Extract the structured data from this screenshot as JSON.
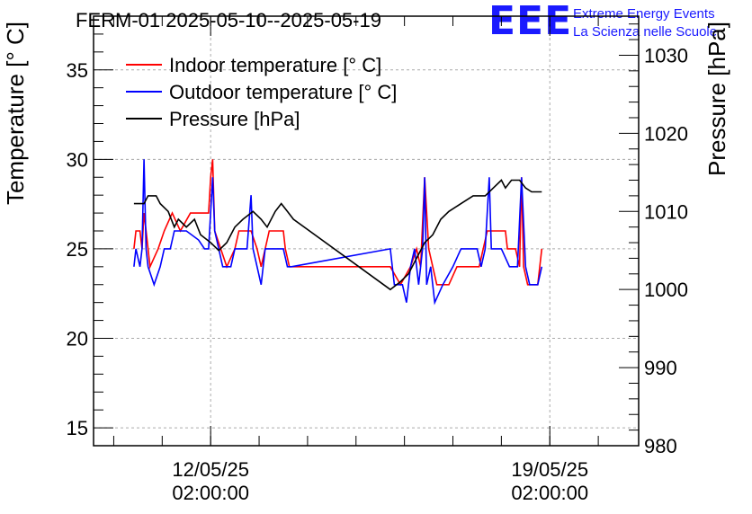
{
  "title": "FERM-01 2025-05-10--2025-05-19",
  "logo": {
    "mark": "EEE",
    "line1": "Extreme Energy Events",
    "line2": "La Scienza nelle Scuole"
  },
  "colors": {
    "indoor": "#ff0000",
    "outdoor": "#0000ff",
    "pressure": "#000000",
    "grid": "#aaaaaa",
    "logo": "#1a1aff"
  },
  "chart_data": {
    "type": "line",
    "title": "FERM-01 2025-05-10--2025-05-19",
    "grid": true,
    "legend_position": "top-left",
    "x_axis": {
      "type": "time",
      "range": [
        "2025-05-09 16:00",
        "2025-05-20 22:00"
      ],
      "ticks": [
        {
          "date": "12/05/25",
          "time": "02:00:00",
          "at": "2025-05-12 02:00"
        },
        {
          "date": "19/05/25",
          "time": "02:00:00",
          "at": "2025-05-19 02:00"
        }
      ]
    },
    "y_left": {
      "label": "Temperature [° C]",
      "range": [
        14,
        38
      ],
      "ticks": [
        15,
        20,
        25,
        30,
        35
      ]
    },
    "y_right": {
      "label": "Pressure [hPa]",
      "range": [
        980,
        1035
      ],
      "ticks": [
        980,
        990,
        1000,
        1010,
        1020,
        1030
      ]
    },
    "series": [
      {
        "name": "Indoor temperature [° C]",
        "axis": "left",
        "color": "#ff0000",
        "points": [
          [
            "2025-05-10 12:00",
            25
          ],
          [
            "2025-05-10 13:00",
            26
          ],
          [
            "2025-05-10 15:00",
            26
          ],
          [
            "2025-05-10 16:00",
            25
          ],
          [
            "2025-05-10 17:00",
            27
          ],
          [
            "2025-05-10 18:00",
            26
          ],
          [
            "2025-05-10 19:00",
            25
          ],
          [
            "2025-05-10 20:00",
            24
          ],
          [
            "2025-05-11 00:00",
            25
          ],
          [
            "2025-05-11 03:00",
            26
          ],
          [
            "2025-05-11 07:00",
            27
          ],
          [
            "2025-05-11 11:00",
            26
          ],
          [
            "2025-05-11 16:00",
            27
          ],
          [
            "2025-05-12 01:00",
            27
          ],
          [
            "2025-05-12 02:00",
            29
          ],
          [
            "2025-05-12 03:00",
            30
          ],
          [
            "2025-05-12 04:00",
            26
          ],
          [
            "2025-05-12 07:00",
            25
          ],
          [
            "2025-05-12 10:00",
            24
          ],
          [
            "2025-05-12 14:00",
            25
          ],
          [
            "2025-05-12 16:00",
            26
          ],
          [
            "2025-05-12 22:00",
            26
          ],
          [
            "2025-05-13 01:00",
            25
          ],
          [
            "2025-05-13 03:00",
            24
          ],
          [
            "2025-05-13 05:00",
            25
          ],
          [
            "2025-05-13 07:00",
            26
          ],
          [
            "2025-05-13 14:00",
            26
          ],
          [
            "2025-05-13 15:00",
            25
          ],
          [
            "2025-05-13 17:00",
            24
          ],
          [
            "2025-05-13 18:00",
            24
          ],
          [
            "2025-05-15 19:00",
            24
          ],
          [
            "2025-05-16 00:00",
            23
          ],
          [
            "2025-05-16 05:00",
            24
          ],
          [
            "2025-05-16 08:00",
            25
          ],
          [
            "2025-05-16 10:00",
            24
          ],
          [
            "2025-05-16 12:00",
            29
          ],
          [
            "2025-05-16 14:00",
            25
          ],
          [
            "2025-05-16 16:00",
            24
          ],
          [
            "2025-05-16 18:00",
            23
          ],
          [
            "2025-05-17 00:00",
            23
          ],
          [
            "2025-05-17 04:00",
            24
          ],
          [
            "2025-05-17 15:00",
            24
          ],
          [
            "2025-05-17 17:00",
            25
          ],
          [
            "2025-05-17 19:00",
            26
          ],
          [
            "2025-05-18 04:00",
            26
          ],
          [
            "2025-05-18 05:00",
            25
          ],
          [
            "2025-05-18 09:00",
            25
          ],
          [
            "2025-05-18 11:00",
            24
          ],
          [
            "2025-05-18 12:00",
            29
          ],
          [
            "2025-05-18 13:00",
            24
          ],
          [
            "2025-05-18 15:00",
            23
          ],
          [
            "2025-05-18 20:00",
            23
          ],
          [
            "2025-05-18 22:00",
            25
          ]
        ]
      },
      {
        "name": "Outdoor temperature [° C]",
        "axis": "left",
        "color": "#0000ff",
        "points": [
          [
            "2025-05-10 12:00",
            24
          ],
          [
            "2025-05-10 13:00",
            25
          ],
          [
            "2025-05-10 15:00",
            24
          ],
          [
            "2025-05-10 16:00",
            25
          ],
          [
            "2025-05-10 17:00",
            30
          ],
          [
            "2025-05-10 18:00",
            25
          ],
          [
            "2025-05-10 19:00",
            24
          ],
          [
            "2025-05-10 22:00",
            23
          ],
          [
            "2025-05-11 01:00",
            24
          ],
          [
            "2025-05-11 03:00",
            25
          ],
          [
            "2025-05-11 06:00",
            25
          ],
          [
            "2025-05-11 08:00",
            26
          ],
          [
            "2025-05-11 14:00",
            26
          ],
          [
            "2025-05-11 20:00",
            25.5
          ],
          [
            "2025-05-11 23:00",
            25
          ],
          [
            "2025-05-12 01:00",
            25
          ],
          [
            "2025-05-12 03:00",
            29
          ],
          [
            "2025-05-12 04:00",
            26
          ],
          [
            "2025-05-12 06:00",
            25
          ],
          [
            "2025-05-12 08:00",
            24
          ],
          [
            "2025-05-12 12:00",
            24
          ],
          [
            "2025-05-12 14:00",
            25
          ],
          [
            "2025-05-12 20:00",
            25
          ],
          [
            "2025-05-12 22:00",
            28
          ],
          [
            "2025-05-12 23:00",
            25
          ],
          [
            "2025-05-13 01:00",
            24
          ],
          [
            "2025-05-13 03:00",
            23
          ],
          [
            "2025-05-13 05:00",
            25
          ],
          [
            "2025-05-13 14:00",
            25
          ],
          [
            "2025-05-13 16:00",
            24
          ],
          [
            "2025-05-13 18:00",
            24
          ],
          [
            "2025-05-15 19:00",
            25
          ],
          [
            "2025-05-15 21:00",
            23
          ],
          [
            "2025-05-16 01:00",
            23
          ],
          [
            "2025-05-16 03:00",
            22
          ],
          [
            "2025-05-16 05:00",
            24
          ],
          [
            "2025-05-16 07:00",
            25
          ],
          [
            "2025-05-16 09:00",
            23
          ],
          [
            "2025-05-16 11:00",
            25
          ],
          [
            "2025-05-16 12:00",
            29
          ],
          [
            "2025-05-16 13:00",
            23
          ],
          [
            "2025-05-16 15:00",
            24
          ],
          [
            "2025-05-16 17:00",
            22
          ],
          [
            "2025-05-16 21:00",
            23
          ],
          [
            "2025-05-17 02:00",
            24
          ],
          [
            "2025-05-17 06:00",
            25
          ],
          [
            "2025-05-17 14:00",
            25
          ],
          [
            "2025-05-17 16:00",
            24
          ],
          [
            "2025-05-17 18:00",
            25
          ],
          [
            "2025-05-17 20:00",
            29
          ],
          [
            "2025-05-17 21:00",
            25
          ],
          [
            "2025-05-18 02:00",
            25
          ],
          [
            "2025-05-18 06:00",
            24
          ],
          [
            "2025-05-18 10:00",
            24
          ],
          [
            "2025-05-18 12:00",
            29
          ],
          [
            "2025-05-18 14:00",
            24
          ],
          [
            "2025-05-18 16:00",
            23
          ],
          [
            "2025-05-18 20:00",
            23
          ],
          [
            "2025-05-18 22:00",
            24
          ]
        ]
      },
      {
        "name": "Pressure [hPa]",
        "axis": "right",
        "color": "#000000",
        "points": [
          [
            "2025-05-10 12:00",
            1011
          ],
          [
            "2025-05-10 17:00",
            1011
          ],
          [
            "2025-05-10 19:00",
            1012
          ],
          [
            "2025-05-10 23:00",
            1012
          ],
          [
            "2025-05-11 01:00",
            1011
          ],
          [
            "2025-05-11 05:00",
            1010
          ],
          [
            "2025-05-11 08:00",
            1008
          ],
          [
            "2025-05-11 10:00",
            1009
          ],
          [
            "2025-05-11 14:00",
            1008
          ],
          [
            "2025-05-11 18:00",
            1009
          ],
          [
            "2025-05-11 21:00",
            1007
          ],
          [
            "2025-05-12 02:00",
            1006
          ],
          [
            "2025-05-12 06:00",
            1005
          ],
          [
            "2025-05-12 10:00",
            1006
          ],
          [
            "2025-05-12 14:00",
            1008
          ],
          [
            "2025-05-12 18:00",
            1009
          ],
          [
            "2025-05-12 23:00",
            1010
          ],
          [
            "2025-05-13 03:00",
            1009
          ],
          [
            "2025-05-13 06:00",
            1008
          ],
          [
            "2025-05-13 10:00",
            1010
          ],
          [
            "2025-05-13 13:00",
            1011
          ],
          [
            "2025-05-13 16:00",
            1010
          ],
          [
            "2025-05-13 19:00",
            1009
          ],
          [
            "2025-05-15 19:00",
            1000
          ],
          [
            "2025-05-16 00:00",
            1001
          ],
          [
            "2025-05-16 04:00",
            1002
          ],
          [
            "2025-05-16 08:00",
            1004
          ],
          [
            "2025-05-16 12:00",
            1006
          ],
          [
            "2025-05-16 16:00",
            1007
          ],
          [
            "2025-05-16 20:00",
            1009
          ],
          [
            "2025-05-17 00:00",
            1010
          ],
          [
            "2025-05-17 06:00",
            1011
          ],
          [
            "2025-05-17 12:00",
            1012
          ],
          [
            "2025-05-17 18:00",
            1012
          ],
          [
            "2025-05-17 22:00",
            1013
          ],
          [
            "2025-05-18 02:00",
            1014
          ],
          [
            "2025-05-18 04:00",
            1013
          ],
          [
            "2025-05-18 07:00",
            1014
          ],
          [
            "2025-05-18 11:00",
            1014
          ],
          [
            "2025-05-18 14:00",
            1013
          ],
          [
            "2025-05-18 17:00",
            1012.5
          ],
          [
            "2025-05-18 22:00",
            1012.5
          ]
        ]
      }
    ]
  }
}
